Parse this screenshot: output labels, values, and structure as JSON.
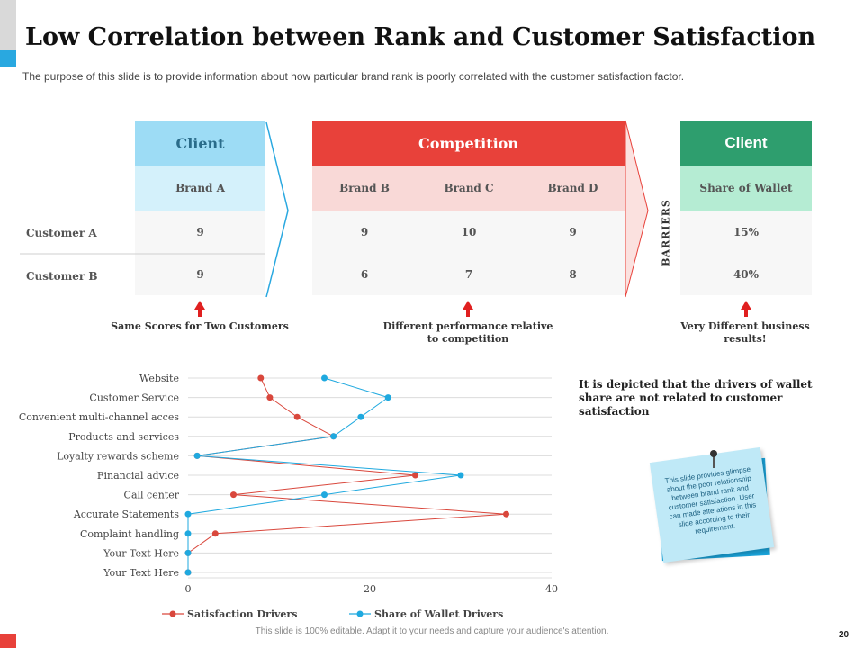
{
  "header": {
    "title": "Low Correlation between Rank and Customer Satisfaction",
    "subtitle": "The purpose of this slide is to provide information about how particular brand rank is poorly correlated with the customer satisfaction factor."
  },
  "table": {
    "client": {
      "label": "Client",
      "brand": "Brand A",
      "values": [
        "9",
        "9"
      ]
    },
    "competition": {
      "label": "Competition",
      "brands": [
        "Brand B",
        "Brand C",
        "Brand D"
      ],
      "rows": [
        [
          "9",
          "10",
          "9"
        ],
        [
          "6",
          "7",
          "8"
        ]
      ]
    },
    "barriers": "BARRIERS",
    "client2": {
      "label": "Client",
      "metric": "Share of Wallet",
      "values": [
        "15%",
        "40%"
      ]
    },
    "rows": [
      "Customer A",
      "Customer B"
    ]
  },
  "notes": {
    "same_scores": "Same Scores for Two Customers",
    "different_perf": "Different performance relative to competition",
    "different_results": "Very Different business results!"
  },
  "insight": "It is depicted that the drivers of wallet share are not related to customer satisfaction",
  "sticky_note": "This slide provides glimpse about the poor relationship between brand rank and customer satisfaction. User can made alterations in this slide according to their requirement.",
  "footer": "This slide is 100% editable. Adapt it to your needs and capture your audience's attention.",
  "page_number": "20",
  "colors": {
    "client": "#9ddcf5",
    "client_sub": "#d4f1fb",
    "competition": "#e8413a",
    "competition_sub": "#f9d9d7",
    "client2": "#2e9e6e",
    "client2_sub": "#b5ecd3",
    "satisfaction": "#d9473c",
    "wallet": "#1fa9df"
  },
  "chart_data": {
    "type": "line",
    "categories": [
      "Website",
      "Customer Service",
      "Convenient multi-channel acces",
      "Products and services",
      "Loyalty rewards scheme",
      "Financial advice",
      "Call center",
      "Accurate Statements",
      "Complaint handling",
      "Your Text Here",
      "Your Text Here"
    ],
    "series": [
      {
        "name": "Satisfaction Drivers",
        "values": [
          8,
          9,
          12,
          16,
          1,
          25,
          5,
          35,
          3,
          0,
          0
        ]
      },
      {
        "name": "Share of Wallet Drivers",
        "values": [
          15,
          22,
          19,
          16,
          1,
          30,
          15,
          0,
          0,
          0,
          0
        ]
      }
    ],
    "xlim": [
      0,
      40
    ],
    "xticks": [
      "0",
      "20",
      "40"
    ],
    "grid": true,
    "legend": "bottom"
  }
}
